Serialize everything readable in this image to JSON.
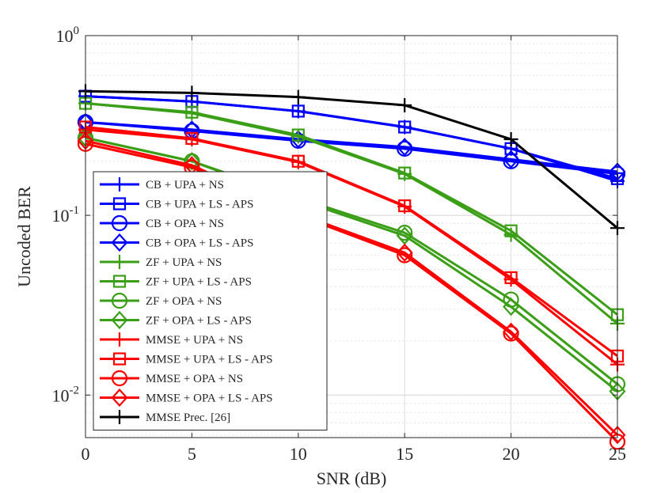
{
  "chart_data": {
    "type": "line",
    "xlabel": "SNR (dB)",
    "ylabel": "Uncoded BER",
    "yscale": "log",
    "xlim": [
      0,
      25
    ],
    "ylim": [
      0.0058,
      1.0
    ],
    "grid": true,
    "legend_position": "bottom-left",
    "x": [
      0,
      5,
      10,
      15,
      20,
      25
    ],
    "x_tick_labels": [
      "0",
      "5",
      "10",
      "15",
      "20",
      "25"
    ],
    "y_ticks": [
      {
        "value": 0.01,
        "base": "10",
        "exp": "-2"
      },
      {
        "value": 0.1,
        "base": "10",
        "exp": "-1"
      },
      {
        "value": 1.0,
        "base": "10",
        "exp": "0"
      }
    ],
    "series": [
      {
        "name": "CB + UPA + NS",
        "color": "#0000ff",
        "marker": "plus",
        "values": [
          0.46,
          0.43,
          0.38,
          0.31,
          0.235,
          0.155
        ]
      },
      {
        "name": "CB + UPA + LS - APS",
        "color": "#0000ff",
        "marker": "square",
        "values": [
          0.46,
          0.43,
          0.38,
          0.31,
          0.235,
          0.16
        ]
      },
      {
        "name": "CB + OPA + NS",
        "color": "#0000ff",
        "marker": "circle",
        "values": [
          0.33,
          0.295,
          0.26,
          0.235,
          0.2,
          0.17
        ]
      },
      {
        "name": "CB + OPA + LS - APS",
        "color": "#0000ff",
        "marker": "diamond",
        "values": [
          0.33,
          0.3,
          0.265,
          0.24,
          0.205,
          0.175
        ]
      },
      {
        "name": "ZF + UPA + NS",
        "color": "#3a9e17",
        "marker": "plus",
        "values": [
          0.42,
          0.37,
          0.275,
          0.17,
          0.078,
          0.025
        ]
      },
      {
        "name": "ZF + UPA + LS - APS",
        "color": "#3a9e17",
        "marker": "square",
        "values": [
          0.42,
          0.375,
          0.28,
          0.172,
          0.082,
          0.028
        ]
      },
      {
        "name": "ZF + OPA + NS",
        "color": "#3a9e17",
        "marker": "circle",
        "values": [
          0.27,
          0.2,
          0.125,
          0.08,
          0.034,
          0.0115
        ]
      },
      {
        "name": "ZF + OPA + LS - APS",
        "color": "#3a9e17",
        "marker": "diamond",
        "values": [
          0.27,
          0.2,
          0.122,
          0.077,
          0.031,
          0.0105
        ]
      },
      {
        "name": "MMSE + UPA + NS",
        "color": "#ff0000",
        "marker": "plus",
        "values": [
          0.3,
          0.265,
          0.198,
          0.112,
          0.044,
          0.0148
        ]
      },
      {
        "name": "MMSE + UPA + LS - APS",
        "color": "#ff0000",
        "marker": "square",
        "values": [
          0.31,
          0.268,
          0.2,
          0.113,
          0.045,
          0.0165
        ]
      },
      {
        "name": "MMSE + OPA + NS",
        "color": "#ff0000",
        "marker": "circle",
        "values": [
          0.25,
          0.185,
          0.1,
          0.06,
          0.022,
          0.0055
        ]
      },
      {
        "name": "MMSE + OPA + LS - APS",
        "color": "#ff0000",
        "marker": "diamond",
        "values": [
          0.26,
          0.19,
          0.102,
          0.062,
          0.0225,
          0.006
        ]
      },
      {
        "name": "MMSE Prec. [26]",
        "color": "#000000",
        "marker": "plus",
        "values": [
          0.49,
          0.48,
          0.455,
          0.41,
          0.265,
          0.085
        ]
      }
    ]
  }
}
